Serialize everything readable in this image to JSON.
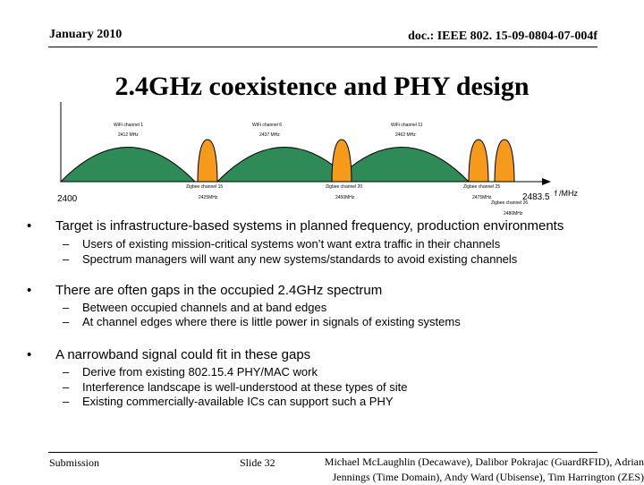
{
  "header": {
    "date": "January 2010",
    "doc_id": "doc.: IEEE 802. 15-09-0804-07-004f"
  },
  "title": "2.4GHz coexistence and PHY design",
  "diagram": {
    "axis_start_label": "2400",
    "axis_end_label": "2483.5",
    "axis_unit_label": "f /MHz",
    "wifi_channels": [
      {
        "name": "WiFi channel 1",
        "freq": "2412 MHz"
      },
      {
        "name": "WiFi channel 6",
        "freq": "2437 MHz"
      },
      {
        "name": "WiFi channel 11",
        "freq": "2462 MHz"
      }
    ],
    "zigbee_channels": [
      {
        "name": "Zigbee channel 15",
        "freq": "2425MHz"
      },
      {
        "name": "Zigbee channel 20",
        "freq": "2450MHz"
      },
      {
        "name": "Zigbee channel 25",
        "freq": "2475MHz"
      },
      {
        "name": "Zigbee channel 26",
        "freq": "2480MHz"
      }
    ],
    "colors": {
      "wifi_fill": "#2e8b57",
      "zigbee_fill": "#f59a1b"
    }
  },
  "bullets": [
    {
      "text": "Target is infrastructure-based systems in planned frequency, production environments",
      "sub": [
        "Users of existing mission-critical systems won’t want extra traffic in their channels",
        "Spectrum managers will want any new systems/standards to avoid existing channels"
      ]
    },
    {
      "text": "There are often gaps in the occupied 2.4GHz spectrum",
      "sub": [
        "Between occupied channels and at band edges",
        "At channel edges where there is little power in signals of existing systems"
      ]
    },
    {
      "text": "A narrowband signal could fit in these gaps",
      "sub": [
        "Derive from existing 802.15.4 PHY/MAC work",
        "Interference landscape is well-understood at these types of site",
        "Existing commercially-available ICs can support such a PHY"
      ]
    }
  ],
  "markers": {
    "bullet": "•",
    "dash": "–"
  },
  "footer": {
    "submission": "Submission",
    "slide": "Slide 32",
    "authors_line1": "Michael McLaughlin (Decawave), Dalibor Pokrajac (GuardRFID), Adrian",
    "authors_line2": "Jennings (Time Domain), Andy Ward (Ubisense), Tim Harrington (ZES)"
  }
}
